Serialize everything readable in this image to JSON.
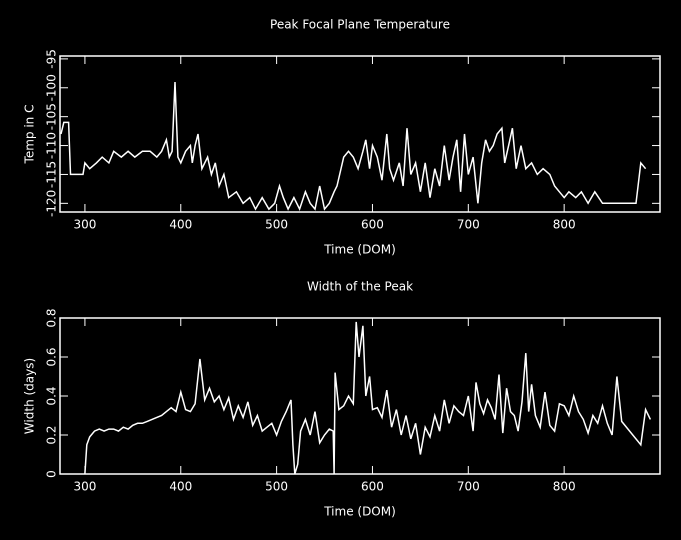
{
  "chart_data": [
    {
      "type": "line",
      "title": "Peak Focal Plane Temperature",
      "x_label": "Time (DOM)",
      "y_label": "Temp in C",
      "color": "#ffffff",
      "xlim": [
        274,
        900
      ],
      "xticks": [
        300,
        400,
        500,
        600,
        700,
        800
      ],
      "ylim": [
        -121.5,
        -94.5
      ],
      "yticks": [
        -120,
        -115,
        -110,
        -105,
        -100,
        -95
      ],
      "x": [
        275,
        278,
        283,
        285,
        298,
        300,
        305,
        312,
        318,
        325,
        330,
        338,
        345,
        352,
        360,
        368,
        375,
        380,
        385,
        388,
        391,
        394,
        397,
        400,
        405,
        410,
        412,
        415,
        418,
        422,
        428,
        432,
        436,
        440,
        445,
        450,
        458,
        465,
        472,
        478,
        485,
        492,
        498,
        503,
        507,
        512,
        518,
        524,
        530,
        535,
        540,
        545,
        550,
        555,
        560,
        563,
        570,
        575,
        580,
        585,
        590,
        593,
        597,
        600,
        605,
        610,
        615,
        618,
        622,
        628,
        632,
        636,
        640,
        645,
        650,
        655,
        660,
        665,
        670,
        675,
        680,
        684,
        688,
        692,
        696,
        700,
        705,
        710,
        714,
        718,
        722,
        726,
        730,
        735,
        738,
        742,
        746,
        750,
        755,
        760,
        766,
        772,
        778,
        785,
        790,
        795,
        800,
        805,
        812,
        818,
        825,
        832,
        840,
        845,
        875,
        880,
        885
      ],
      "values": [
        -108,
        -106,
        -106,
        -115,
        -115,
        -113,
        -114,
        -113,
        -112,
        -113,
        -111,
        -112,
        -111,
        -112,
        -111,
        -111,
        -112,
        -111,
        -109,
        -112,
        -111,
        -99,
        -112,
        -113,
        -111,
        -110,
        -113,
        -110,
        -108,
        -114,
        -112,
        -115,
        -113,
        -117,
        -115,
        -119,
        -118,
        -120,
        -119,
        -121,
        -119,
        -121,
        -120,
        -117,
        -119,
        -121,
        -119,
        -121,
        -118,
        -120,
        -121,
        -117,
        -121,
        -120,
        -118,
        -117,
        -112,
        -111,
        -112,
        -114,
        -111,
        -109,
        -114,
        -110,
        -112,
        -116,
        -108,
        -114,
        -116,
        -113,
        -117,
        -107,
        -115,
        -113,
        -118,
        -113,
        -119,
        -114,
        -117,
        -110,
        -116,
        -112,
        -109,
        -118,
        -108,
        -115,
        -112,
        -120,
        -113,
        -109,
        -111,
        -110,
        -108,
        -107,
        -113,
        -110,
        -107,
        -114,
        -110,
        -114,
        -113,
        -115,
        -114,
        -115,
        -117,
        -118,
        -119,
        -118,
        -119,
        -118,
        -120,
        -118,
        -120,
        -120,
        -120,
        -113,
        -114
      ]
    },
    {
      "type": "line",
      "title": "Width of the Peak",
      "x_label": "Time (DOM)",
      "y_label": "Width (days)",
      "color": "#ffffff",
      "xlim": [
        274,
        900
      ],
      "xticks": [
        300,
        400,
        500,
        600,
        700,
        800
      ],
      "ylim": [
        0,
        0.8
      ],
      "yticks": [
        0,
        0.2,
        0.4,
        0.6,
        0.8
      ],
      "x": [
        300,
        302,
        305,
        310,
        315,
        320,
        325,
        330,
        335,
        340,
        345,
        350,
        355,
        360,
        365,
        370,
        375,
        380,
        385,
        390,
        395,
        400,
        405,
        410,
        415,
        420,
        425,
        430,
        435,
        440,
        445,
        450,
        455,
        460,
        465,
        470,
        475,
        480,
        485,
        490,
        495,
        500,
        505,
        510,
        515,
        517,
        519,
        522,
        525,
        530,
        535,
        540,
        545,
        550,
        555,
        559,
        560,
        561,
        565,
        570,
        575,
        580,
        583,
        586,
        590,
        593,
        597,
        600,
        605,
        610,
        615,
        620,
        625,
        630,
        635,
        640,
        645,
        650,
        655,
        660,
        665,
        670,
        675,
        680,
        685,
        690,
        695,
        700,
        705,
        708,
        712,
        716,
        720,
        724,
        728,
        732,
        736,
        740,
        744,
        748,
        752,
        756,
        760,
        763,
        766,
        770,
        775,
        780,
        785,
        790,
        795,
        800,
        805,
        810,
        815,
        820,
        825,
        830,
        835,
        840,
        845,
        850,
        855,
        860,
        880,
        885,
        890
      ],
      "values": [
        0,
        0.15,
        0.19,
        0.22,
        0.23,
        0.22,
        0.23,
        0.23,
        0.22,
        0.24,
        0.23,
        0.25,
        0.26,
        0.26,
        0.27,
        0.28,
        0.29,
        0.3,
        0.32,
        0.34,
        0.32,
        0.42,
        0.33,
        0.32,
        0.36,
        0.59,
        0.38,
        0.44,
        0.37,
        0.4,
        0.33,
        0.39,
        0.28,
        0.35,
        0.29,
        0.37,
        0.25,
        0.3,
        0.22,
        0.24,
        0.26,
        0.2,
        0.27,
        0.32,
        0.38,
        0.15,
        0,
        0.05,
        0.22,
        0.28,
        0.2,
        0.32,
        0.16,
        0.2,
        0.23,
        0.22,
        0,
        0.52,
        0.33,
        0.35,
        0.4,
        0.36,
        0.78,
        0.6,
        0.76,
        0.4,
        0.5,
        0.33,
        0.34,
        0.29,
        0.43,
        0.24,
        0.33,
        0.2,
        0.3,
        0.18,
        0.26,
        0.1,
        0.24,
        0.19,
        0.3,
        0.22,
        0.38,
        0.26,
        0.35,
        0.32,
        0.3,
        0.4,
        0.22,
        0.47,
        0.36,
        0.31,
        0.38,
        0.34,
        0.28,
        0.51,
        0.21,
        0.44,
        0.32,
        0.3,
        0.22,
        0.37,
        0.62,
        0.32,
        0.46,
        0.3,
        0.24,
        0.42,
        0.25,
        0.22,
        0.36,
        0.35,
        0.3,
        0.4,
        0.32,
        0.28,
        0.21,
        0.3,
        0.26,
        0.35,
        0.26,
        0.2,
        0.5,
        0.27,
        0.15,
        0.33,
        0.28
      ]
    }
  ]
}
